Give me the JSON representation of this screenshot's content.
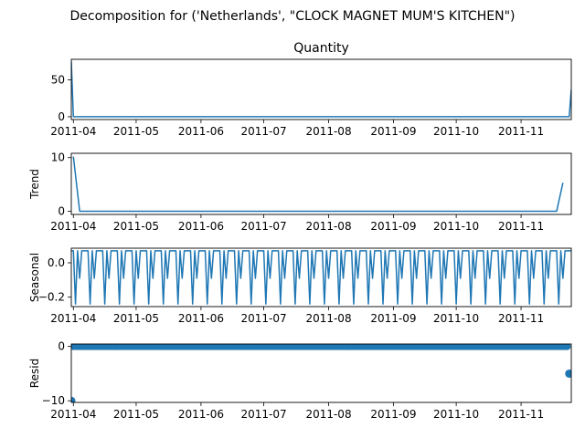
{
  "figure": {
    "suptitle": "Decomposition for ('Netherlands', \"CLOCK MAGNET MUM'S KITCHEN\")"
  },
  "chart_data": [
    {
      "type": "line",
      "title": "Quantity",
      "ylabel": "",
      "x_range": [
        "2011-03-31",
        "2011-11-25"
      ],
      "x_ticks": [
        "2011-04",
        "2011-05",
        "2011-06",
        "2011-07",
        "2011-08",
        "2011-09",
        "2011-10",
        "2011-11"
      ],
      "y_ticks": [
        0,
        50
      ],
      "ylim": [
        -3.8,
        78
      ],
      "color": "#1f77b4",
      "series": [
        {
          "x": [
            "2011-03-31",
            "2011-04-01",
            "2011-11-23",
            "2011-11-24",
            "2011-11-25"
          ],
          "values": [
            75,
            0,
            0,
            0,
            37
          ]
        }
      ]
    },
    {
      "type": "line",
      "title": "",
      "ylabel": "Trend",
      "x_range": [
        "2011-03-31",
        "2011-11-25"
      ],
      "x_ticks": [
        "2011-04",
        "2011-05",
        "2011-06",
        "2011-07",
        "2011-08",
        "2011-09",
        "2011-10",
        "2011-11"
      ],
      "y_ticks": [
        0,
        10
      ],
      "ylim": [
        -0.6,
        10.8
      ],
      "color": "#1f77b4",
      "series": [
        {
          "x": [
            "2011-04-01",
            "2011-04-04",
            "2011-11-18",
            "2011-11-21"
          ],
          "values": [
            10.2,
            0,
            0,
            5.3
          ]
        }
      ]
    },
    {
      "type": "line",
      "title": "",
      "ylabel": "Seasonal",
      "x_range": [
        "2011-03-31",
        "2011-11-25"
      ],
      "x_ticks": [
        "2011-04",
        "2011-05",
        "2011-06",
        "2011-07",
        "2011-08",
        "2011-09",
        "2011-10",
        "2011-11"
      ],
      "y_ticks": [
        0.0,
        -0.2
      ],
      "y_tick_labels": [
        "0.0",
        "−0.2"
      ],
      "ylim": [
        -0.255,
        0.085
      ],
      "color": "#1f77b4",
      "seasonal_pattern": [
        0.07,
        0.07,
        -0.24,
        0.07,
        -0.09,
        0.07,
        0.07
      ],
      "seasonal_start": "2011-03-31",
      "seasonal_end": "2011-11-25"
    },
    {
      "type": "scatter",
      "title": "",
      "ylabel": "Resid",
      "x_range": [
        "2011-03-31",
        "2011-11-25"
      ],
      "x_ticks": [
        "2011-04",
        "2011-05",
        "2011-06",
        "2011-07",
        "2011-08",
        "2011-09",
        "2011-10",
        "2011-11"
      ],
      "y_ticks": [
        0,
        -10
      ],
      "y_tick_labels": [
        "0",
        "−10"
      ],
      "ylim": [
        -10.3,
        0.45
      ],
      "color": "#1f77b4",
      "points": [
        {
          "x": "2011-03-31",
          "y": -10.0
        },
        {
          "x": "2011-11-24",
          "y": -5.0
        }
      ],
      "baseline": {
        "value": 0.0,
        "from": "2011-04-01",
        "to": "2011-11-23"
      }
    }
  ]
}
